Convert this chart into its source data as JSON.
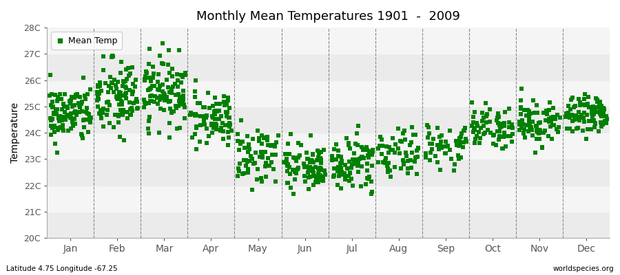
{
  "title": "Monthly Mean Temperatures 1901  -  2009",
  "ylabel": "Temperature",
  "xlabel": "",
  "ylim": [
    20,
    28
  ],
  "ytick_labels": [
    "20C",
    "21C",
    "22C",
    "23C",
    "24C",
    "25C",
    "26C",
    "27C",
    "28C"
  ],
  "ytick_values": [
    20,
    21,
    22,
    23,
    24,
    25,
    26,
    27,
    28
  ],
  "months": [
    "Jan",
    "Feb",
    "Mar",
    "Apr",
    "May",
    "Jun",
    "Jul",
    "Aug",
    "Sep",
    "Oct",
    "Nov",
    "Dec"
  ],
  "month_positions": [
    0.5,
    1.5,
    2.5,
    3.5,
    4.5,
    5.5,
    6.5,
    7.5,
    8.5,
    9.5,
    10.5,
    11.5
  ],
  "marker_color": "#008000",
  "marker": "s",
  "marker_size": 4,
  "legend_label": "Mean Temp",
  "subtitle_left": "Latitude 4.75 Longitude -67.25",
  "subtitle_right": "worldspecies.org",
  "bg_color": "#f5f5f5",
  "band_colors_h": [
    "#ebebeb",
    "#f5f5f5"
  ],
  "mean_by_month": [
    24.7,
    25.3,
    25.6,
    24.7,
    23.2,
    22.7,
    22.8,
    23.2,
    23.6,
    24.1,
    24.4,
    24.7
  ],
  "std_by_month": [
    0.55,
    0.75,
    0.65,
    0.5,
    0.55,
    0.5,
    0.5,
    0.45,
    0.4,
    0.4,
    0.4,
    0.35
  ],
  "n_by_month": [
    109,
    109,
    109,
    80,
    70,
    90,
    90,
    60,
    55,
    70,
    80,
    90
  ],
  "seed": 42
}
